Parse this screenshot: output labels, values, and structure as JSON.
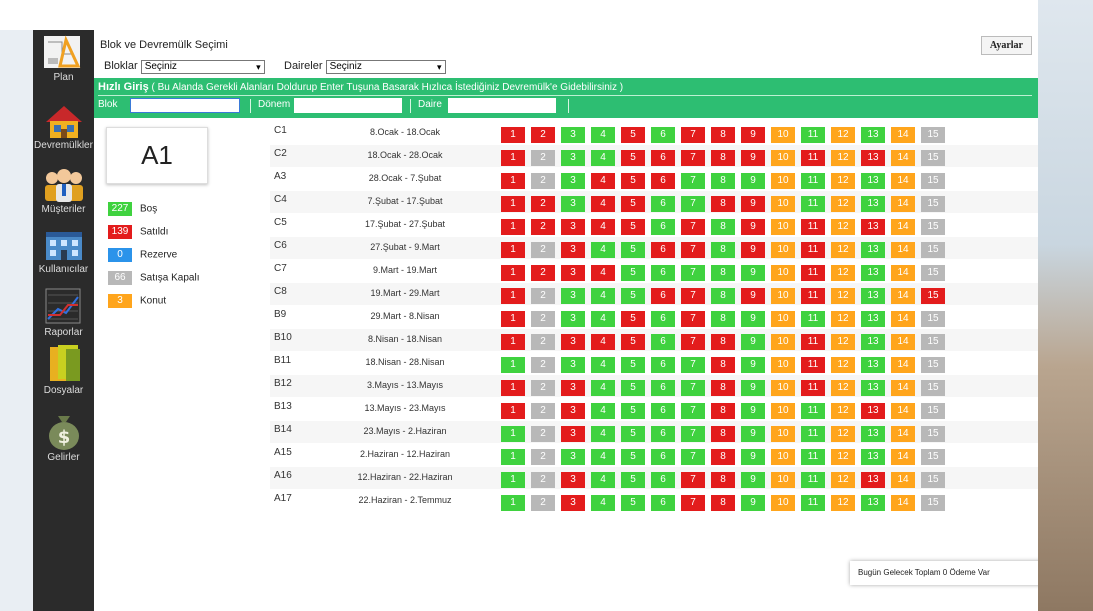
{
  "colors": {
    "bos": "#3fd23f",
    "satildi": "#e31c1c",
    "rezerve": "#2b93ea",
    "satisa_kapali": "#b8b8b8",
    "konut": "#ffa51c",
    "quick_entry_bar": "#2dbe72",
    "sidebar": "#2b2b2b"
  },
  "sidebar": {
    "items": [
      {
        "label": "Plan",
        "icon": "plan-icon"
      },
      {
        "label": "Devremülkler",
        "icon": "house-icon"
      },
      {
        "label": "Müşteriler",
        "icon": "users-icon"
      },
      {
        "label": "Kullanıcılar",
        "icon": "building-icon"
      },
      {
        "label": "Raporlar",
        "icon": "chart-icon"
      },
      {
        "label": "Dosyalar",
        "icon": "folder-icon"
      },
      {
        "label": "Gelirler",
        "icon": "money-bag-icon"
      }
    ]
  },
  "header": {
    "title": "Blok ve Devremülk Seçimi",
    "settings_button": "Ayarlar"
  },
  "filters": {
    "blocks_label": "Bloklar",
    "blocks_value": "Seçiniz",
    "flats_label": "Daireler",
    "flats_value": "Seçiniz"
  },
  "quick_entry": {
    "title": "Hızlı Giriş",
    "hint": "( Bu Alanda Gerekli Alanları Doldurup Enter Tuşuna Basarak Hızlıca İstediğiniz Devremülk'e Gidebilirsiniz )",
    "block_label": "Blok",
    "period_label": "Dönem",
    "flat_label": "Daire"
  },
  "selected_apartment": "A1",
  "legend": [
    {
      "count": "227",
      "label": "Boş",
      "status": "g"
    },
    {
      "count": "139",
      "label": "Satıldı",
      "status": "r"
    },
    {
      "count": "0",
      "label": "Rezerve",
      "status": "b"
    },
    {
      "count": "66",
      "label": "Satışa Kapalı",
      "status": "s"
    },
    {
      "count": "3",
      "label": "Konut",
      "status": "o"
    }
  ],
  "columns": [
    "1",
    "2",
    "3",
    "4",
    "5",
    "6",
    "7",
    "8",
    "9",
    "10",
    "11",
    "12",
    "13",
    "14",
    "15"
  ],
  "rows": [
    {
      "code": "C1",
      "period": "8.Ocak - 18.Ocak",
      "statuses": [
        "r",
        "r",
        "g",
        "g",
        "r",
        "g",
        "r",
        "r",
        "r",
        "o",
        "g",
        "o",
        "g",
        "o",
        "s"
      ]
    },
    {
      "code": "C2",
      "period": "18.Ocak - 28.Ocak",
      "statuses": [
        "r",
        "s",
        "g",
        "g",
        "r",
        "r",
        "r",
        "r",
        "r",
        "o",
        "r",
        "o",
        "r",
        "o",
        "s"
      ]
    },
    {
      "code": "A3",
      "period": "28.Ocak - 7.Şubat",
      "statuses": [
        "r",
        "s",
        "g",
        "r",
        "r",
        "r",
        "g",
        "g",
        "g",
        "o",
        "g",
        "o",
        "g",
        "o",
        "s"
      ]
    },
    {
      "code": "C4",
      "period": "7.Şubat - 17.Şubat",
      "statuses": [
        "r",
        "r",
        "g",
        "r",
        "r",
        "g",
        "g",
        "r",
        "r",
        "o",
        "g",
        "o",
        "g",
        "o",
        "s"
      ]
    },
    {
      "code": "C5",
      "period": "17.Şubat - 27.Şubat",
      "statuses": [
        "r",
        "r",
        "r",
        "r",
        "r",
        "g",
        "r",
        "g",
        "r",
        "o",
        "r",
        "o",
        "r",
        "o",
        "s"
      ]
    },
    {
      "code": "C6",
      "period": "27.Şubat - 9.Mart",
      "statuses": [
        "r",
        "s",
        "r",
        "g",
        "g",
        "r",
        "r",
        "g",
        "r",
        "o",
        "r",
        "o",
        "g",
        "o",
        "s"
      ]
    },
    {
      "code": "C7",
      "period": "9.Mart - 19.Mart",
      "statuses": [
        "r",
        "r",
        "r",
        "r",
        "g",
        "g",
        "g",
        "g",
        "g",
        "o",
        "r",
        "o",
        "g",
        "o",
        "s"
      ]
    },
    {
      "code": "C8",
      "period": "19.Mart - 29.Mart",
      "statuses": [
        "r",
        "s",
        "g",
        "g",
        "g",
        "r",
        "r",
        "g",
        "r",
        "o",
        "r",
        "o",
        "g",
        "o",
        "r"
      ]
    },
    {
      "code": "B9",
      "period": "29.Mart - 8.Nisan",
      "statuses": [
        "r",
        "s",
        "g",
        "g",
        "r",
        "g",
        "r",
        "g",
        "g",
        "o",
        "g",
        "o",
        "g",
        "o",
        "s"
      ]
    },
    {
      "code": "B10",
      "period": "8.Nisan - 18.Nisan",
      "statuses": [
        "r",
        "s",
        "r",
        "r",
        "r",
        "g",
        "r",
        "r",
        "g",
        "o",
        "r",
        "o",
        "g",
        "o",
        "s"
      ]
    },
    {
      "code": "B11",
      "period": "18.Nisan - 28.Nisan",
      "statuses": [
        "g",
        "s",
        "g",
        "g",
        "g",
        "g",
        "g",
        "r",
        "g",
        "o",
        "r",
        "o",
        "g",
        "o",
        "s"
      ]
    },
    {
      "code": "B12",
      "period": "3.Mayıs - 13.Mayıs",
      "statuses": [
        "r",
        "s",
        "r",
        "g",
        "g",
        "g",
        "g",
        "r",
        "g",
        "o",
        "r",
        "o",
        "g",
        "o",
        "s"
      ]
    },
    {
      "code": "B13",
      "period": "13.Mayıs - 23.Mayıs",
      "statuses": [
        "r",
        "s",
        "r",
        "g",
        "g",
        "g",
        "g",
        "r",
        "g",
        "o",
        "g",
        "o",
        "r",
        "o",
        "s"
      ]
    },
    {
      "code": "B14",
      "period": "23.Mayıs - 2.Haziran",
      "statuses": [
        "g",
        "s",
        "r",
        "g",
        "g",
        "g",
        "g",
        "r",
        "g",
        "o",
        "g",
        "o",
        "g",
        "o",
        "s"
      ]
    },
    {
      "code": "A15",
      "period": "2.Haziran - 12.Haziran",
      "statuses": [
        "g",
        "s",
        "g",
        "g",
        "g",
        "g",
        "g",
        "r",
        "g",
        "o",
        "g",
        "o",
        "g",
        "o",
        "s"
      ]
    },
    {
      "code": "A16",
      "period": "12.Haziran - 22.Haziran",
      "statuses": [
        "g",
        "s",
        "r",
        "g",
        "g",
        "g",
        "r",
        "r",
        "g",
        "o",
        "g",
        "o",
        "r",
        "o",
        "s"
      ]
    },
    {
      "code": "A17",
      "period": "22.Haziran - 2.Temmuz",
      "statuses": [
        "g",
        "s",
        "r",
        "g",
        "g",
        "g",
        "r",
        "r",
        "g",
        "o",
        "g",
        "o",
        "g",
        "o",
        "s"
      ]
    }
  ],
  "notice": "Bugün Gelecek Toplam 0 Ödeme Var"
}
